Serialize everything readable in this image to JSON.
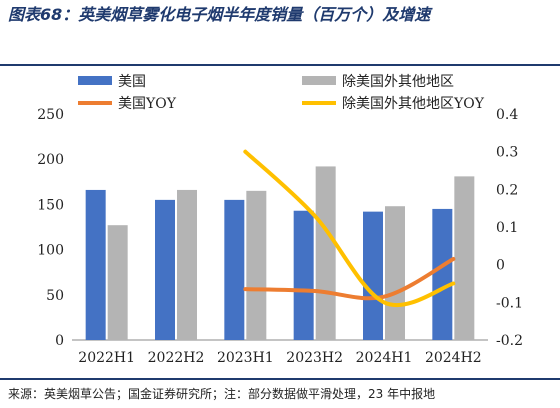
{
  "title": "图表68：英美烟草雾化电子烟半年度销量（百万个）及增速",
  "source": "来源：英美烟草公告；国金证券研究所；注：部分数据做平滑处理，23 年中报地",
  "colors": {
    "us_bar": "#4472c4",
    "other_bar": "#b4b4b4",
    "us_line": "#ed7d31",
    "other_line": "#ffc000",
    "rule": "#1f3a6e"
  },
  "chart_data": {
    "type": "bar",
    "categories": [
      "2022H1",
      "2022H2",
      "2023H1",
      "2023H2",
      "2024H1",
      "2024H2"
    ],
    "series": [
      {
        "name": "美国",
        "kind": "bar",
        "axis": "left",
        "color": "#4472c4",
        "values": [
          166,
          155,
          155,
          143,
          142,
          145
        ]
      },
      {
        "name": "除美国外其他地区",
        "kind": "bar",
        "axis": "left",
        "color": "#b4b4b4",
        "values": [
          127,
          166,
          165,
          192,
          148,
          181
        ]
      }
    ],
    "line_series": [
      {
        "name": "美国YOY",
        "kind": "line",
        "axis": "right",
        "color": "#ed7d31",
        "values": [
          null,
          null,
          -0.065,
          -0.07,
          -0.085,
          0.015
        ]
      },
      {
        "name": "除美国外其他地区YOY",
        "kind": "line",
        "axis": "right",
        "color": "#ffc000",
        "values": [
          null,
          null,
          0.3,
          0.13,
          -0.1,
          -0.05
        ]
      }
    ],
    "y_left": {
      "min": 0,
      "max": 250,
      "ticks": [
        "0",
        "50",
        "100",
        "150",
        "200",
        "250"
      ]
    },
    "y_right": {
      "min": -0.2,
      "max": 0.4,
      "ticks": [
        "-0.2",
        "-0.1",
        "0",
        "0.1",
        "0.2",
        "0.3",
        "0.4"
      ]
    },
    "legend_position": "top",
    "grid": false
  }
}
